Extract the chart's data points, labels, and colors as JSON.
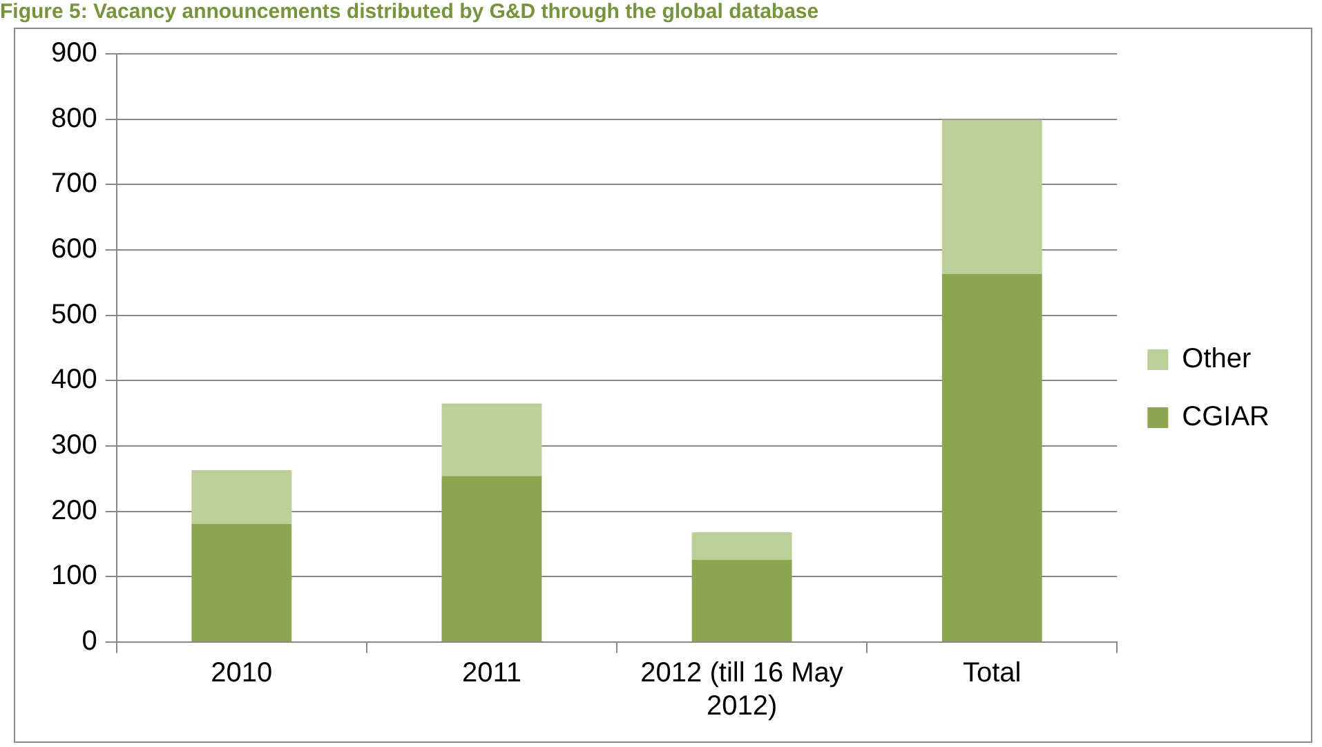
{
  "chart_data": {
    "type": "bar",
    "title": "Figure 5: Vacancy announcements distributed by G&D through the global database",
    "categories": [
      "2010",
      "2011",
      "2012 (till 16 May 2012)",
      "Total"
    ],
    "stacked": true,
    "series": [
      {
        "name": "CGIAR",
        "color": "#8aa64e",
        "values": [
          181,
          254,
          126,
          563
        ]
      },
      {
        "name": "Other",
        "color": "#bbcf98",
        "values": [
          82,
          111,
          42,
          236
        ]
      }
    ],
    "ylim": [
      0,
      900
    ],
    "yticks": [
      0,
      100,
      200,
      300,
      400,
      500,
      600,
      700,
      800,
      900
    ],
    "grid": "y",
    "legend": "right"
  }
}
